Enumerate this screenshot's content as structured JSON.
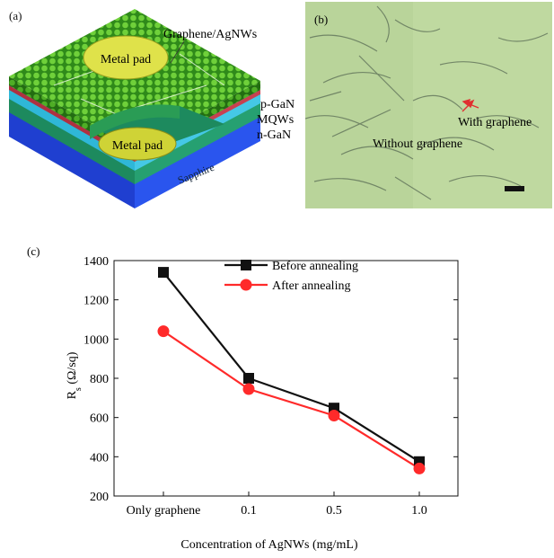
{
  "panels": {
    "a": {
      "label": "(a)",
      "top_pad": "Metal pad",
      "bottom_pad": "Metal pad",
      "graphene": "Graphene/AgNWs",
      "layers": [
        "p-GaN",
        "MQWs",
        "n-GaN"
      ],
      "substrate": "Sapphire"
    },
    "b": {
      "label": "(b)",
      "with_graphene": "With graphene",
      "without_graphene": "Without graphene"
    },
    "c": {
      "label": "(c)"
    }
  },
  "colors": {
    "before": "#111111",
    "after": "#ff2a2a",
    "graphene_green": "#4caf22",
    "micrograph_bg": "#b9d49a"
  },
  "chart_data": {
    "type": "line",
    "categories": [
      "Only graphene",
      "0.1",
      "0.5",
      "1.0"
    ],
    "series": [
      {
        "name": "Before annealing",
        "values": [
          1340,
          800,
          648,
          375
        ],
        "marker": "square"
      },
      {
        "name": "After annealing",
        "values": [
          1040,
          745,
          610,
          340
        ],
        "marker": "circle"
      }
    ],
    "xlabel": "Concentration of AgNWs (mg/mL)",
    "ylabel": "R",
    "ylabel_sub": "s",
    "ylabel_unit": " (Ω/sq)",
    "ylim": [
      200,
      1400
    ],
    "yticks": [
      200,
      400,
      600,
      800,
      1000,
      1200,
      1400
    ],
    "legend": "top-center",
    "grid": false
  }
}
